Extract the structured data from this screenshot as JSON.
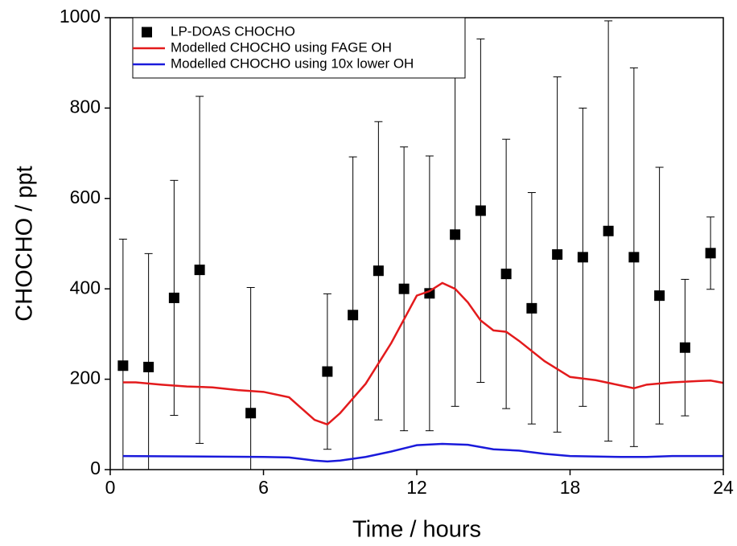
{
  "chart_data": {
    "type": "scatter-line",
    "x_label": "Time / hours",
    "y_label": "CHOCHO / ppt",
    "xlim": [
      0,
      24
    ],
    "xticks": [
      0,
      6,
      12,
      18,
      24
    ],
    "ylim": [
      0,
      1000
    ],
    "yticks": [
      0,
      200,
      400,
      600,
      800,
      1000
    ],
    "legend": "upper-left",
    "series": [
      {
        "name": "LP-DOAS CHOCHO",
        "kind": "points",
        "color": "#000000",
        "x": [
          0.5,
          1.5,
          2.5,
          3.5,
          5.5,
          8.5,
          9.5,
          10.5,
          11.5,
          12.5,
          13.5,
          14.5,
          15.5,
          16.5,
          17.5,
          18.5,
          19.5,
          20.5,
          21.5,
          22.5,
          23.5
        ],
        "values": [
          230,
          227,
          380,
          442,
          125,
          217,
          342,
          440,
          400,
          390,
          520,
          573,
          433,
          357,
          476,
          470,
          528,
          470,
          385,
          270,
          479
        ],
        "errors": [
          280,
          251,
          260,
          384,
          278,
          172,
          350,
          330,
          314,
          304,
          380,
          380,
          298,
          256,
          393,
          330,
          465,
          419,
          284,
          151,
          80
        ]
      },
      {
        "name": "Modelled CHOCHO using FAGE OH",
        "kind": "line",
        "color": "#e31a1c",
        "x": [
          0.5,
          1,
          2,
          3,
          4,
          5,
          6,
          7,
          8,
          8.5,
          9,
          10,
          11,
          12,
          12.5,
          13,
          13.5,
          14,
          14.5,
          15,
          15.5,
          16,
          17,
          18,
          19,
          20,
          20.5,
          21,
          22,
          23,
          23.5,
          24
        ],
        "values": [
          193,
          193,
          188,
          184,
          182,
          176,
          172,
          160,
          110,
          100,
          125,
          190,
          280,
          385,
          395,
          413,
          400,
          370,
          330,
          308,
          305,
          285,
          240,
          205,
          198,
          186,
          180,
          188,
          193,
          196,
          197,
          192
        ]
      },
      {
        "name": "Modelled CHOCHO using 10x lower OH",
        "kind": "line",
        "color": "#1a1adb",
        "x": [
          0.5,
          6,
          7,
          8,
          8.5,
          9,
          10,
          11,
          12,
          13,
          14,
          15,
          16,
          17,
          18,
          20,
          21,
          22,
          24
        ],
        "values": [
          30,
          28,
          27,
          20,
          18,
          20,
          28,
          40,
          54,
          57,
          55,
          45,
          42,
          35,
          30,
          28,
          28,
          30,
          30
        ]
      }
    ]
  }
}
